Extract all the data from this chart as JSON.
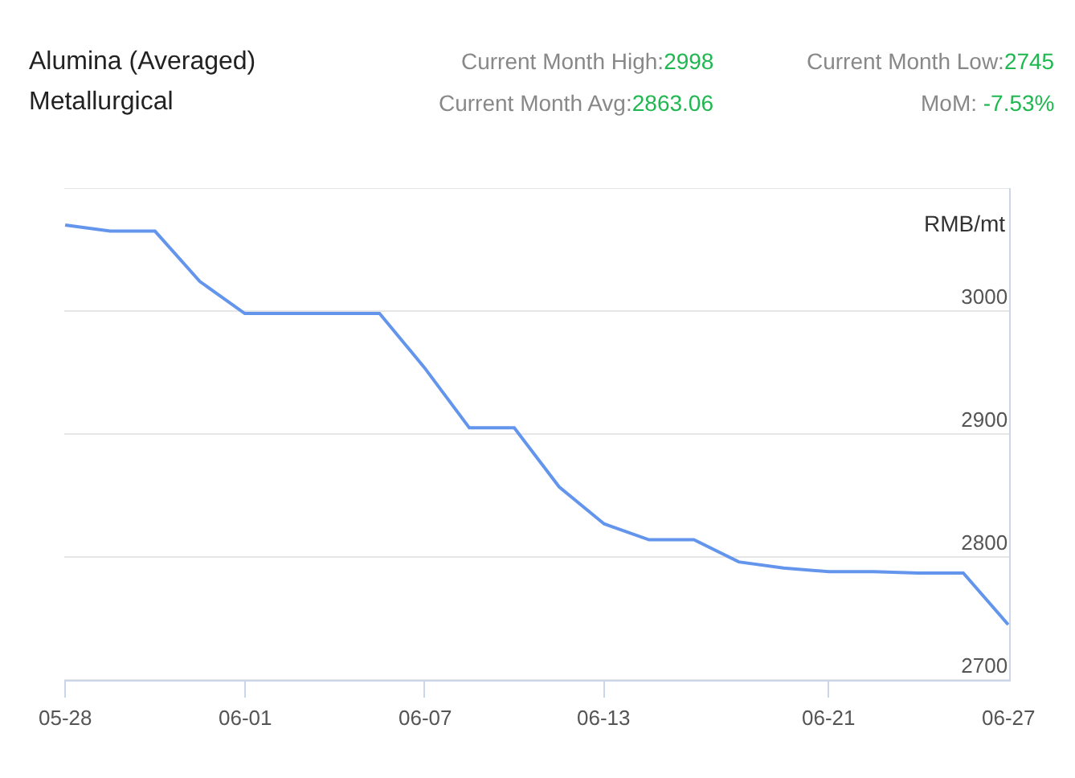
{
  "chart_data": {
    "type": "line",
    "title": "Alumina (Averaged)",
    "subtitle": "Metallurgical",
    "annotations": [
      "Current Month High:2998",
      "Current Month Low:2745",
      "Current Month Avg:2863.06",
      "MoM: -7.53%"
    ],
    "ylabel": "RMB/mt",
    "categories": [
      "05-28",
      null,
      null,
      null,
      "06-01",
      null,
      null,
      null,
      "06-07",
      null,
      null,
      null,
      "06-13",
      null,
      null,
      null,
      null,
      "06-21",
      null,
      null,
      null,
      "06-27"
    ],
    "series": [
      {
        "color": "#6495ed",
        "values": [
          3070,
          3065,
          3065,
          3024,
          2998,
          2998,
          2998,
          2998,
          2954,
          2905,
          2905,
          2857,
          2827,
          2814,
          2814,
          2796,
          2791,
          2788,
          2788,
          2787,
          2787,
          2745
        ]
      }
    ],
    "ylim": [
      2700,
      3100
    ],
    "yticks": [
      2700,
      2800,
      2900,
      3000,
      {
        "value": 3100,
        "label": null
      }
    ],
    "grid": "y",
    "marker": "none",
    "line_style": "solid"
  }
}
